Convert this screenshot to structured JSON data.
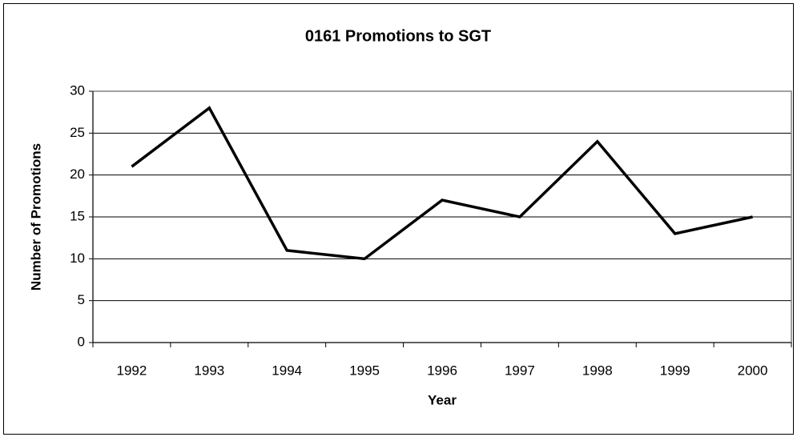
{
  "chart_data": {
    "type": "line",
    "title": "0161 Promotions to SGT",
    "x_label": "Year",
    "y_label": "Number of Promotions",
    "categories": [
      "1992",
      "1993",
      "1994",
      "1995",
      "1996",
      "1997",
      "1998",
      "1999",
      "2000"
    ],
    "values": [
      21,
      28,
      11,
      10,
      17,
      15,
      24,
      13,
      15
    ],
    "color": "#000000",
    "ylim": [
      0,
      30
    ],
    "yticks": [
      0,
      5,
      10,
      15,
      20,
      25,
      30
    ],
    "grid": true
  }
}
